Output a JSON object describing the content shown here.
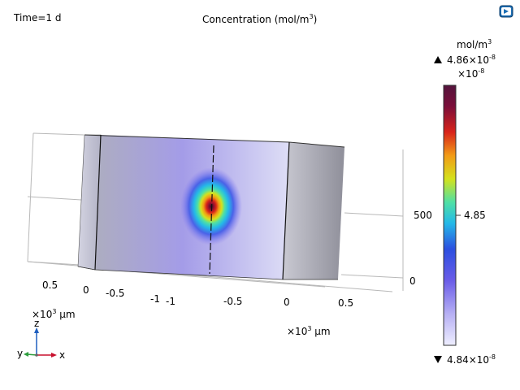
{
  "header": {
    "time_label": "Time=1 d",
    "title_main": "Concentration (mol/m",
    "title_sup": "3",
    "title_end": ")"
  },
  "toolbar": {
    "badge_icon": "app-logo-icon"
  },
  "colorbar": {
    "unit_main": "mol/m",
    "unit_sup": "3",
    "max_label": "4.86×10",
    "max_exp": "-8",
    "scale_prefix": "×10",
    "scale_exp": "-8",
    "mid_label": "4.85",
    "min_label": "4.84×10",
    "min_exp": "-8",
    "max_icon": "triangle-up-icon",
    "min_icon": "triangle-down-icon",
    "colors": [
      "#eeeeff",
      "#8a7cf0",
      "#2c4fe0",
      "#24b9e8",
      "#4fe0a5",
      "#d4e21c",
      "#f29b16",
      "#d8231a",
      "#7a0e3a",
      "#54143c"
    ]
  },
  "axes": {
    "left_ticks": [
      "0.5",
      "0",
      "-0.5",
      "-1"
    ],
    "front_ticks": [
      "-1",
      "-0.5",
      "0",
      "0.5"
    ],
    "right_ticks": [
      "500",
      "0"
    ],
    "left_unit_prefix": "×10",
    "left_unit_exp": "3",
    "left_unit_suffix": "μm",
    "front_unit_prefix": "×10",
    "front_unit_exp": "3",
    "front_unit_suffix": "μm"
  },
  "triad": {
    "z_label": "z",
    "y_label": "y",
    "x_label": "x",
    "x_color": "#c8102e",
    "y_color": "#2e9e3e",
    "z_color": "#1f5fbf"
  }
}
